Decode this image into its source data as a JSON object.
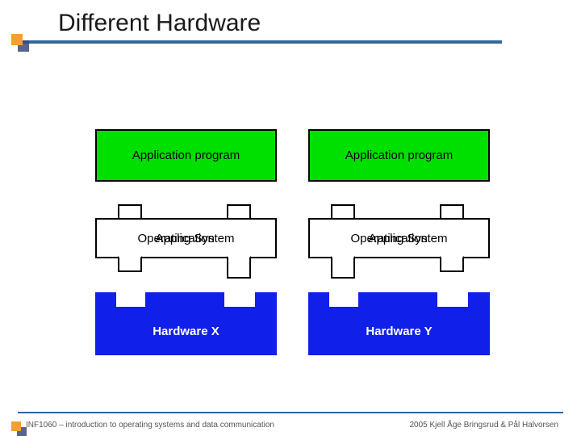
{
  "title": "Different Hardware",
  "footer_left": "INF1060 – introduction to operating systems and data communication",
  "footer_right": "2005  Kjell Åge Bringsrud & Pål Halvorsen",
  "colors": {
    "accent_orange": "#f4a030",
    "accent_navy": "#3a4a7a",
    "rule_blue": "#336699",
    "app_fill": "#00e000",
    "hw_fill": "#1020e8",
    "os_fill": "#ffffff",
    "outline": "#000000"
  },
  "stacks": [
    {
      "app_label": "Application program",
      "os_label_a": "Operating System",
      "os_label_b": "Application",
      "hw_label": "Hardware X"
    },
    {
      "app_label": "Application program",
      "os_label_a": "Operating System",
      "os_label_b": "Application",
      "hw_label": "Hardware Y"
    }
  ]
}
